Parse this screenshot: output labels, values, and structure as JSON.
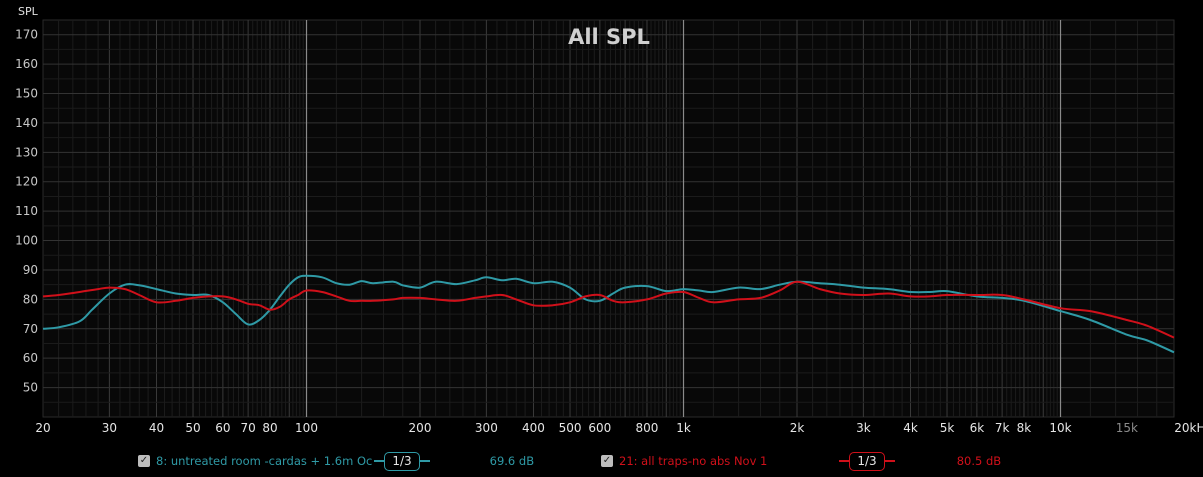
{
  "chart_data": {
    "type": "line",
    "title": "All SPL",
    "ylabel": "SPL",
    "xlabel": "",
    "x_scale": "log",
    "xlim": [
      20,
      20000
    ],
    "ylim": [
      40,
      175
    ],
    "grid": true,
    "y_ticks": [
      50,
      60,
      70,
      80,
      90,
      100,
      110,
      120,
      130,
      140,
      150,
      160,
      170
    ],
    "x_ticks": [
      {
        "value": 20,
        "label": "20"
      },
      {
        "value": 30,
        "label": "30"
      },
      {
        "value": 40,
        "label": "40"
      },
      {
        "value": 50,
        "label": "50"
      },
      {
        "value": 60,
        "label": "60"
      },
      {
        "value": 70,
        "label": "70"
      },
      {
        "value": 80,
        "label": "80"
      },
      {
        "value": 100,
        "label": "100"
      },
      {
        "value": 200,
        "label": "200"
      },
      {
        "value": 300,
        "label": "300"
      },
      {
        "value": 400,
        "label": "400"
      },
      {
        "value": 500,
        "label": "500"
      },
      {
        "value": 600,
        "label": "600"
      },
      {
        "value": 800,
        "label": "800"
      },
      {
        "value": 1000,
        "label": "1k"
      },
      {
        "value": 2000,
        "label": "2k"
      },
      {
        "value": 3000,
        "label": "3k"
      },
      {
        "value": 4000,
        "label": "4k"
      },
      {
        "value": 5000,
        "label": "5k"
      },
      {
        "value": 6000,
        "label": "6k"
      },
      {
        "value": 7000,
        "label": "7k"
      },
      {
        "value": 8000,
        "label": "8k"
      },
      {
        "value": 10000,
        "label": "10k"
      },
      {
        "value": 15000,
        "label": "15k"
      },
      {
        "value": 20000,
        "label": "20kHz"
      }
    ],
    "series": [
      {
        "name": "8: untreated room -cardas + 1.6m Oc",
        "color": "#2f9aa6",
        "smoothing": "1/3",
        "level": "69.6 dB",
        "x": [
          20,
          22,
          25,
          27,
          30,
          33,
          36,
          40,
          45,
          50,
          55,
          60,
          65,
          70,
          75,
          80,
          85,
          90,
          95,
          100,
          110,
          120,
          130,
          140,
          150,
          170,
          180,
          200,
          220,
          250,
          280,
          300,
          330,
          360,
          400,
          450,
          500,
          550,
          600,
          650,
          700,
          800,
          900,
          1000,
          1100,
          1200,
          1400,
          1600,
          1800,
          2000,
          2300,
          2600,
          3000,
          3500,
          4000,
          4500,
          5000,
          6000,
          7000,
          8000,
          10000,
          12000,
          15000,
          17000,
          20000
        ],
        "y": [
          70,
          70.5,
          72.5,
          76.5,
          82,
          85,
          84.8,
          83.5,
          82,
          81.5,
          81.5,
          79,
          75,
          71.5,
          73,
          76.5,
          81,
          85,
          87.5,
          88,
          87.5,
          85.5,
          85,
          86.2,
          85.5,
          86,
          84.8,
          84,
          86,
          85.2,
          86.5,
          87.5,
          86.5,
          87,
          85.5,
          86,
          84,
          80,
          79.5,
          82,
          84,
          84.5,
          82.8,
          83.5,
          83,
          82.5,
          84,
          83.5,
          85,
          86,
          85.5,
          85,
          84,
          83.5,
          82.5,
          82.5,
          82.8,
          81,
          80.5,
          79.5,
          76,
          73,
          68,
          66,
          62
        ]
      },
      {
        "name": "21: all traps-no abs Nov 1",
        "color": "#d0101a",
        "smoothing": "1/3",
        "level": "80.5 dB",
        "x": [
          20,
          22,
          25,
          28,
          30,
          33,
          36,
          40,
          45,
          50,
          55,
          60,
          65,
          70,
          75,
          80,
          85,
          90,
          95,
          100,
          110,
          120,
          130,
          140,
          150,
          170,
          180,
          200,
          220,
          250,
          280,
          300,
          330,
          360,
          400,
          450,
          500,
          550,
          600,
          650,
          700,
          800,
          900,
          1000,
          1100,
          1200,
          1400,
          1600,
          1800,
          2000,
          2300,
          2600,
          3000,
          3500,
          4000,
          4500,
          5000,
          6000,
          7000,
          8000,
          10000,
          12000,
          15000,
          17000,
          20000
        ],
        "y": [
          81,
          81.5,
          82.5,
          83.5,
          84,
          83.5,
          81.5,
          79,
          79.5,
          80.5,
          81,
          81,
          80,
          78.5,
          78,
          76.5,
          77.5,
          80,
          81.5,
          83,
          82.5,
          81,
          79.5,
          79.5,
          79.5,
          80,
          80.5,
          80.5,
          80,
          79.5,
          80.5,
          81,
          81.5,
          80,
          78,
          78,
          79,
          81,
          81.5,
          79.5,
          79,
          80,
          82,
          82.5,
          80.5,
          79,
          80,
          80.5,
          83,
          86,
          83.5,
          82,
          81.5,
          82,
          81,
          81,
          81.5,
          81.5,
          81.5,
          80,
          77,
          76,
          73,
          71,
          67
        ]
      }
    ]
  }
}
